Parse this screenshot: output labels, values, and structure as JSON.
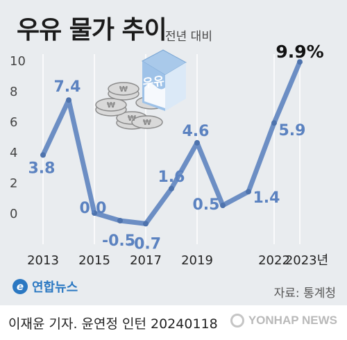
{
  "title": "우유 물가 추이",
  "subtitle": "전년 대비",
  "source": "자료: 통계청",
  "agency": "연합뉴스",
  "byline": "이재윤 기자. 윤연정 인턴  20240118",
  "watermark": "YONHAP NEWS",
  "colors": {
    "line": "#6c8ec4",
    "label": "#5b82c0",
    "highlight": "#111111",
    "background": "#e9ecef"
  },
  "chart_data": {
    "type": "line",
    "title": "우유 물가 추이",
    "subtitle": "전년 대비",
    "x": [
      2013,
      2014,
      2015,
      2016,
      2017,
      2018,
      2019,
      2020,
      2021,
      2022,
      2023
    ],
    "values": [
      3.8,
      7.4,
      0.0,
      -0.5,
      -0.7,
      1.6,
      4.6,
      0.5,
      1.4,
      5.9,
      9.9
    ],
    "data_labels": [
      "3.8",
      "7.4",
      "0.0",
      "-0.5",
      "-0.7",
      "1.6",
      "4.6",
      "0.5",
      "1.4",
      "5.9",
      "9.9%"
    ],
    "xtick_labels": [
      "2013",
      "2015",
      "2017",
      "2019",
      "2022",
      "2023년"
    ],
    "xtick_values": [
      2013,
      2015,
      2017,
      2019,
      2022,
      2023
    ],
    "yticks": [
      0,
      2,
      4,
      6,
      8,
      10
    ],
    "ylim": [
      -1,
      10
    ],
    "grid": "vertical lines at labeled years",
    "highlight": "last point (2023) labeled in bold black"
  }
}
